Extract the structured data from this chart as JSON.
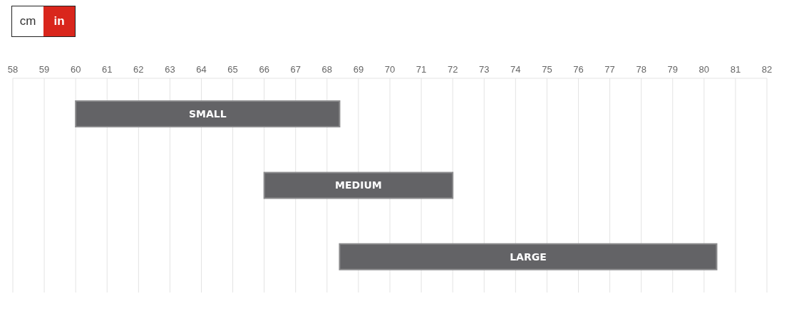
{
  "chart_data": {
    "type": "bar",
    "orientation": "horizontal",
    "categories": [
      "SMALL",
      "MEDIUM",
      "LARGE"
    ],
    "base": [
      60,
      66,
      68.4
    ],
    "values": [
      8.4,
      6,
      12
    ],
    "color": "#636366",
    "xlim": [
      58,
      82
    ],
    "xticks": [
      58,
      59,
      60,
      61,
      62,
      63,
      64,
      65,
      66,
      67,
      68,
      69,
      70,
      71,
      72,
      73,
      74,
      75,
      76,
      77,
      78,
      79,
      80,
      81,
      82
    ],
    "grid": "x",
    "tick_labels": "x",
    "annotations": [
      "cm",
      "in"
    ]
  }
}
